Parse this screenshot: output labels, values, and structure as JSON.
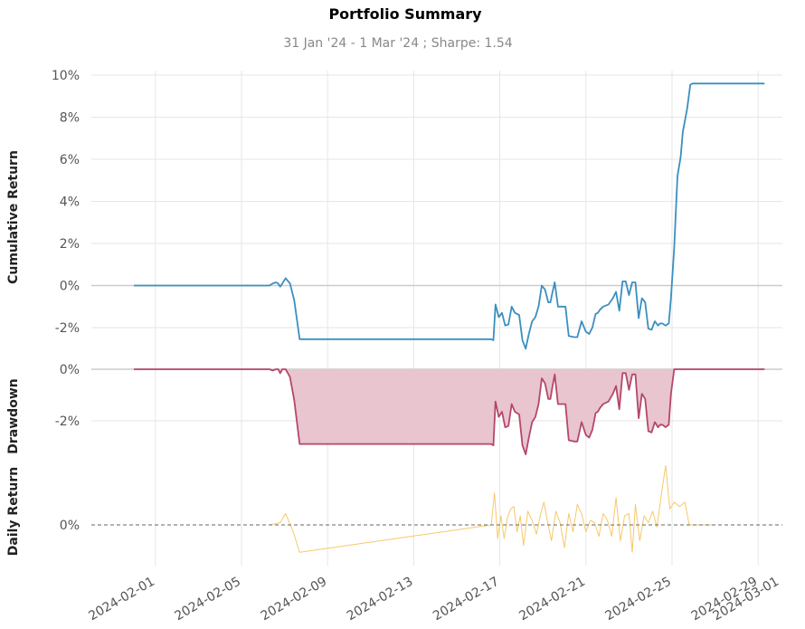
{
  "chart_data": {
    "type": "line",
    "title": "Portfolio Summary",
    "subtitle": "31 Jan '24 -  1 Mar '24 ;  Sharpe: 1.54",
    "x_tick_labels": [
      "2024-02-01",
      "2024-02-05",
      "2024-02-09",
      "2024-02-13",
      "2024-02-17",
      "2024-02-21",
      "2024-02-25",
      "2024-02-29",
      "2024-03-01"
    ],
    "grid": true,
    "panels": [
      {
        "ylabel": "Cumulative Return",
        "ylim": [
          -2.7,
          10.2
        ],
        "y_tick_labels": [
          "10%",
          "8%",
          "6%",
          "4%",
          "2%",
          "0%",
          "-2%"
        ],
        "series": [
          {
            "color": "#3a8fbf",
            "x": [
              0,
              5,
              6.3,
              6.45,
              6.6,
              6.7,
              6.8,
              6.9,
              7.05,
              7.25,
              7.45,
              7.7,
              11.5,
              16.6,
              16.7,
              16.8,
              16.95,
              17.1,
              17.25,
              17.4,
              17.55,
              17.7,
              17.9,
              18.05,
              18.2,
              18.35,
              18.5,
              18.65,
              18.8,
              18.95,
              19.1,
              19.25,
              19.35,
              19.45,
              19.55,
              19.7,
              19.85,
              20.05,
              20.2,
              20.45,
              20.6,
              20.8,
              21.0,
              21.15,
              21.3,
              21.45,
              21.55,
              21.65,
              21.8,
              22.05,
              22.25,
              22.4,
              22.55,
              22.7,
              22.85,
              23.0,
              23.15,
              23.3,
              23.45,
              23.6,
              23.75,
              23.9,
              24.05,
              24.2,
              24.35,
              24.45,
              24.55,
              24.7,
              24.85,
              24.95,
              25.1,
              25.25,
              25.4,
              25.5,
              25.7,
              25.85,
              25.95,
              26.05,
              26.2,
              26.35,
              26.5,
              26.7,
              26.9,
              28,
              29.3
            ],
            "y": [
              0,
              0,
              0,
              0.1,
              0.15,
              0.1,
              -0.05,
              0.1,
              0.35,
              0.1,
              -0.7,
              -2.55,
              -2.55,
              -2.55,
              -2.6,
              -0.9,
              -1.5,
              -1.3,
              -1.9,
              -1.85,
              -1,
              -1.3,
              -1.4,
              -2.6,
              -3,
              -2.3,
              -1.7,
              -1.5,
              -1,
              0,
              -0.2,
              -0.8,
              -0.8,
              -0.3,
              0.15,
              -1,
              -1,
              -1,
              -2.4,
              -2.45,
              -2.45,
              -1.7,
              -2.2,
              -2.3,
              -2,
              -1.35,
              -1.3,
              -1.15,
              -1,
              -0.9,
              -0.6,
              -0.3,
              -1.2,
              0.2,
              0.2,
              -0.45,
              0.15,
              0.15,
              -1.55,
              -0.6,
              -0.8,
              -2.05,
              -2.1,
              -1.7,
              -1.9,
              -1.8,
              -1.8,
              -1.9,
              -1.8,
              -0.6,
              1.8,
              5.2,
              6.1,
              7.3,
              8.4,
              9.55,
              9.6,
              9.6,
              9.6,
              9.6,
              9.6,
              9.6,
              9.6,
              9.6,
              9.6
            ]
          }
        ]
      },
      {
        "ylabel": "Drawdown",
        "ylim": [
          -3.9,
          0.2
        ],
        "y_tick_labels": [
          "0%",
          "-2%"
        ],
        "series": [
          {
            "color": "#b5476a",
            "fill": "#e8c5cf",
            "x": [
              0,
              5,
              6.3,
              6.45,
              6.6,
              6.7,
              6.8,
              6.9,
              7.05,
              7.25,
              7.45,
              7.7,
              11.5,
              16.6,
              16.7,
              16.8,
              16.95,
              17.1,
              17.25,
              17.4,
              17.55,
              17.7,
              17.9,
              18.05,
              18.2,
              18.35,
              18.5,
              18.65,
              18.8,
              18.95,
              19.1,
              19.25,
              19.35,
              19.45,
              19.55,
              19.7,
              19.85,
              20.05,
              20.2,
              20.45,
              20.6,
              20.8,
              21.0,
              21.15,
              21.3,
              21.45,
              21.55,
              21.65,
              21.8,
              22.05,
              22.25,
              22.4,
              22.55,
              22.7,
              22.85,
              23.0,
              23.15,
              23.3,
              23.45,
              23.6,
              23.75,
              23.9,
              24.05,
              24.2,
              24.35,
              24.45,
              24.55,
              24.7,
              24.85,
              24.95,
              25.1,
              25.25,
              25.4,
              25.5,
              25.7,
              25.85,
              25.95,
              26.05,
              26.2,
              26.35,
              26.5,
              26.7,
              26.9,
              28,
              29.3
            ],
            "y": [
              0,
              0,
              0,
              -0.05,
              0,
              0,
              -0.15,
              0,
              0,
              -0.3,
              -1.2,
              -2.9,
              -2.9,
              -2.9,
              -2.95,
              -1.25,
              -1.85,
              -1.65,
              -2.25,
              -2.2,
              -1.35,
              -1.65,
              -1.75,
              -2.95,
              -3.3,
              -2.65,
              -2.05,
              -1.85,
              -1.35,
              -0.35,
              -0.55,
              -1.15,
              -1.15,
              -0.65,
              -0.2,
              -1.35,
              -1.35,
              -1.35,
              -2.75,
              -2.8,
              -2.8,
              -2.05,
              -2.55,
              -2.65,
              -2.35,
              -1.7,
              -1.65,
              -1.5,
              -1.35,
              -1.25,
              -0.95,
              -0.65,
              -1.55,
              -0.15,
              -0.15,
              -0.8,
              -0.2,
              -0.2,
              -1.9,
              -0.95,
              -1.15,
              -2.4,
              -2.45,
              -2.05,
              -2.25,
              -2.15,
              -2.15,
              -2.25,
              -2.15,
              -0.95,
              0,
              0,
              0,
              0,
              0,
              0,
              0,
              0,
              0,
              0,
              0,
              0,
              0,
              0,
              0
            ]
          }
        ]
      },
      {
        "ylabel": "Daily Return",
        "ylim": [
          -1.2,
          2.8
        ],
        "y_tick_labels": [
          "0%"
        ],
        "series": [
          {
            "color": "#f5c96a",
            "x": [
              6.3,
              6.8,
              7.05,
              7.4,
              7.7,
              16.6,
              16.75,
              16.9,
              17.05,
              17.2,
              17.35,
              17.5,
              17.65,
              17.8,
              17.95,
              18.1,
              18.3,
              18.5,
              18.7,
              18.9,
              19.05,
              19.2,
              19.4,
              19.6,
              19.8,
              20.0,
              20.2,
              20.4,
              20.6,
              20.8,
              21.0,
              21.2,
              21.4,
              21.6,
              21.8,
              22.0,
              22.2,
              22.4,
              22.6,
              22.8,
              23.0,
              23.15,
              23.3,
              23.5,
              23.7,
              23.9,
              24.1,
              24.3,
              24.5,
              24.7,
              24.9,
              25.1,
              25.35,
              25.6,
              25.8,
              25.95,
              26.1,
              26.3,
              26.5,
              26.7,
              26.85
            ],
            "y": [
              0,
              0.1,
              0.5,
              -0.3,
              -1.2,
              0,
              1.4,
              -0.6,
              0.4,
              -0.6,
              0.3,
              0.7,
              0.8,
              -0.3,
              0.4,
              -0.9,
              0.6,
              0.2,
              -0.4,
              0.5,
              1,
              0.2,
              -0.7,
              0.6,
              0.1,
              -1,
              0.5,
              -0.3,
              0.9,
              0.5,
              -0.3,
              0.2,
              0.1,
              -0.5,
              0.5,
              0.2,
              -0.5,
              1.2,
              -0.7,
              0.4,
              0.5,
              -1.2,
              0.9,
              -0.7,
              0.4,
              0.1,
              0.6,
              -0.1,
              1.3,
              2.6,
              0.7,
              1.0,
              0.8,
              1.0,
              0,
              0,
              0,
              0,
              0,
              0,
              0
            ]
          }
        ]
      }
    ]
  }
}
